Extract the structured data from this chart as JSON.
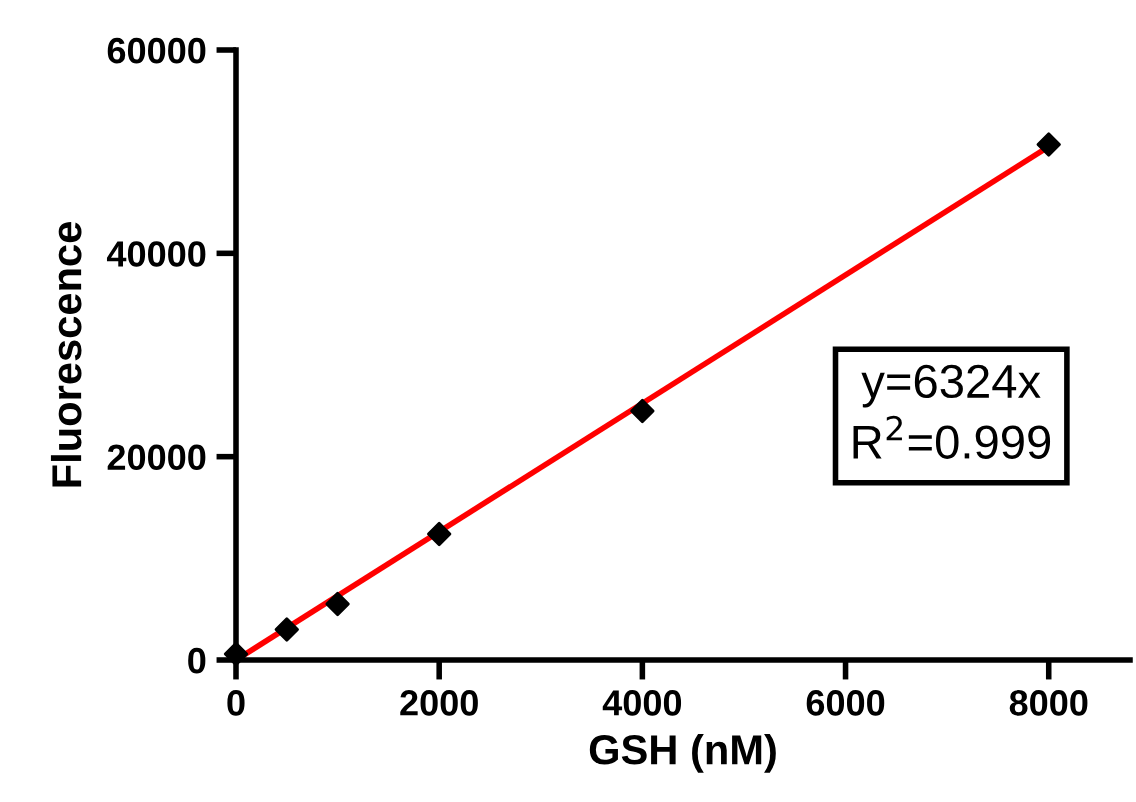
{
  "chart_data": {
    "type": "scatter",
    "xlabel": "GSH (nM)",
    "ylabel": "Fluorescence",
    "xlim": [
      0,
      8800
    ],
    "ylim": [
      0,
      60000
    ],
    "xticks": [
      0,
      2000,
      4000,
      6000,
      8000
    ],
    "yticks": [
      0,
      20000,
      40000,
      60000
    ],
    "grid": false,
    "legend": false,
    "marker": "diamond",
    "series": [
      {
        "color": "#000000",
        "x": [
          0,
          500,
          1000,
          2000,
          4000,
          8000
        ],
        "values": [
          600,
          3000,
          5500,
          12400,
          24500,
          50700
        ]
      },
      {
        "type": "line",
        "color": "#ff0000",
        "line_style": "solid",
        "marker": "none",
        "x": [
          0,
          8000
        ],
        "values": [
          0,
          50500
        ]
      }
    ],
    "annotations": [
      "y=6324x\nR$^{2}$=0.999"
    ]
  }
}
